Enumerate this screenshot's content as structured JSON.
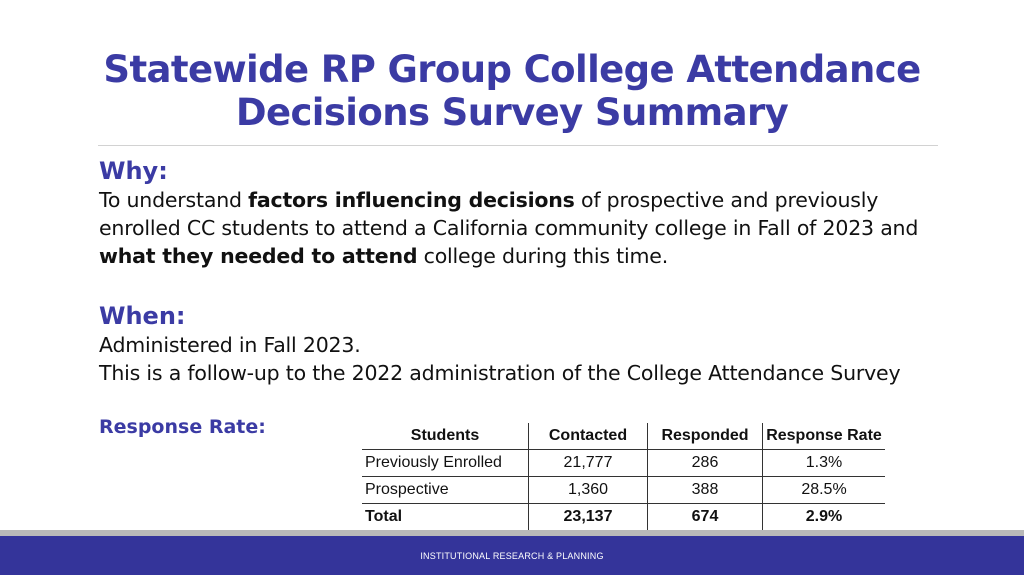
{
  "slide": {
    "title_line1": "Statewide RP Group College Attendance",
    "title_line2": "Decisions Survey Summary"
  },
  "why": {
    "heading": "Why:",
    "text_1": "To understand ",
    "bold_1": "factors influencing decisions",
    "text_2": " of prospective and previously enrolled CC students to attend a California community college in Fall of 2023 and ",
    "bold_2": "what they needed to attend",
    "text_3": " college during this time."
  },
  "when": {
    "heading": "When:",
    "line_1": "Administered in Fall 2023.",
    "line_2": "This is a follow-up to the 2022 administration of the College Attendance Survey"
  },
  "response_rate": {
    "label": "Response Rate:",
    "headers": [
      "Students",
      "Contacted",
      "Responded",
      "Response Rate"
    ],
    "rows": [
      [
        "Previously Enrolled",
        "21,777",
        "286",
        "1.3%"
      ],
      [
        "Prospective",
        "1,360",
        "388",
        "28.5%"
      ],
      [
        "Total",
        "23,137",
        "674",
        "2.9%"
      ]
    ]
  },
  "footer": {
    "text": "INSTITUTIONAL RESEARCH & PLANNING"
  },
  "colors": {
    "accent": "#3b3ba4",
    "footer_band": "#34349a",
    "footer_stripe": "#b9b9b9"
  }
}
